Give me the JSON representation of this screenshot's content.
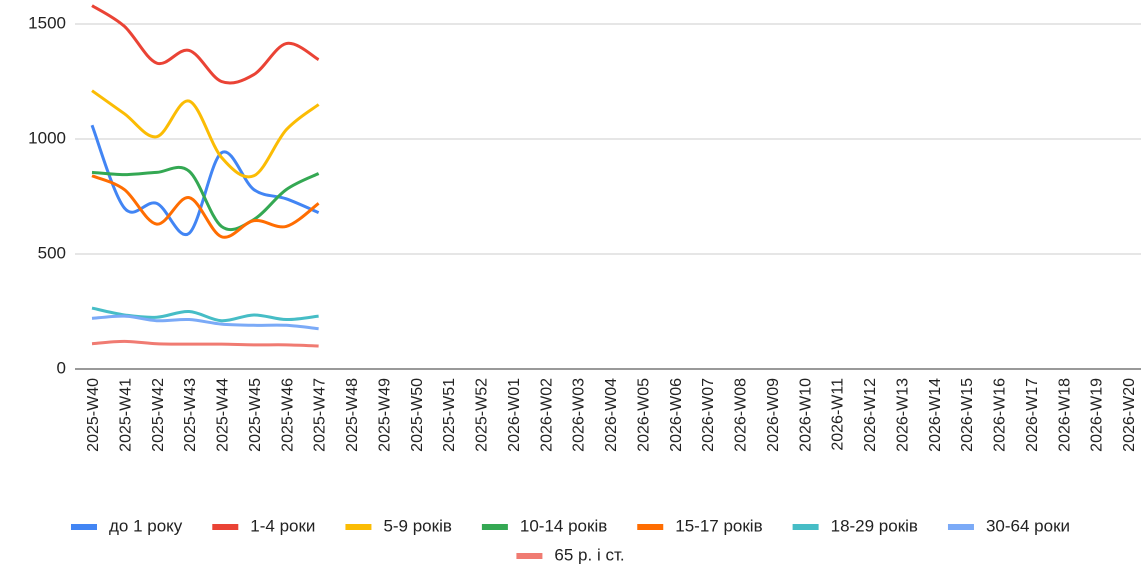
{
  "chart_data": {
    "type": "line",
    "categories": [
      "2025-W40",
      "2025-W41",
      "2025-W42",
      "2025-W43",
      "2025-W44",
      "2025-W45",
      "2025-W46",
      "2025-W47",
      "2025-W48",
      "2025-W49",
      "2025-W50",
      "2025-W51",
      "2025-W52",
      "2026-W01",
      "2026-W02",
      "2026-W03",
      "2026-W04",
      "2026-W05",
      "2026-W06",
      "2026-W07",
      "2026-W08",
      "2026-W09",
      "2026-W10",
      "2026-W11",
      "2026-W12",
      "2026-W13",
      "2026-W14",
      "2026-W15",
      "2026-W16",
      "2026-W17",
      "2026-W18",
      "2026-W19",
      "2026-W20"
    ],
    "series": [
      {
        "name": "до 1 року",
        "color": "#4285f4",
        "values": [
          1060,
          700,
          720,
          590,
          940,
          780,
          740,
          680,
          null,
          null,
          null,
          null,
          null,
          null,
          null,
          null,
          null,
          null,
          null,
          null,
          null,
          null,
          null,
          null,
          null,
          null,
          null,
          null,
          null,
          null,
          null,
          null,
          null
        ]
      },
      {
        "name": "1-4 роки",
        "color": "#ea4335",
        "values": [
          1580,
          1490,
          1330,
          1385,
          1250,
          1280,
          1415,
          1345,
          null,
          null,
          null,
          null,
          null,
          null,
          null,
          null,
          null,
          null,
          null,
          null,
          null,
          null,
          null,
          null,
          null,
          null,
          null,
          null,
          null,
          null,
          null,
          null,
          null
        ]
      },
      {
        "name": "5-9 років",
        "color": "#fbbc04",
        "values": [
          1210,
          1110,
          1010,
          1165,
          920,
          840,
          1040,
          1150,
          null,
          null,
          null,
          null,
          null,
          null,
          null,
          null,
          null,
          null,
          null,
          null,
          null,
          null,
          null,
          null,
          null,
          null,
          null,
          null,
          null,
          null,
          null,
          null,
          null
        ]
      },
      {
        "name": "10-14 років",
        "color": "#34a853",
        "values": [
          855,
          845,
          855,
          860,
          620,
          650,
          780,
          850,
          null,
          null,
          null,
          null,
          null,
          null,
          null,
          null,
          null,
          null,
          null,
          null,
          null,
          null,
          null,
          null,
          null,
          null,
          null,
          null,
          null,
          null,
          null,
          null,
          null
        ]
      },
      {
        "name": "15-17 років",
        "color": "#ff6d01",
        "values": [
          840,
          780,
          630,
          745,
          575,
          645,
          620,
          720,
          null,
          null,
          null,
          null,
          null,
          null,
          null,
          null,
          null,
          null,
          null,
          null,
          null,
          null,
          null,
          null,
          null,
          null,
          null,
          null,
          null,
          null,
          null,
          null,
          null
        ]
      },
      {
        "name": "18-29 років",
        "color": "#46bdc6",
        "values": [
          265,
          235,
          225,
          250,
          210,
          235,
          215,
          230,
          null,
          null,
          null,
          null,
          null,
          null,
          null,
          null,
          null,
          null,
          null,
          null,
          null,
          null,
          null,
          null,
          null,
          null,
          null,
          null,
          null,
          null,
          null,
          null,
          null
        ]
      },
      {
        "name": "30-64 роки",
        "color": "#7baaf7",
        "values": [
          220,
          230,
          210,
          215,
          195,
          190,
          190,
          175,
          null,
          null,
          null,
          null,
          null,
          null,
          null,
          null,
          null,
          null,
          null,
          null,
          null,
          null,
          null,
          null,
          null,
          null,
          null,
          null,
          null,
          null,
          null,
          null,
          null
        ]
      },
      {
        "name": "65 р. і ст.",
        "color": "#f07b72",
        "values": [
          110,
          120,
          110,
          108,
          108,
          105,
          105,
          100,
          null,
          null,
          null,
          null,
          null,
          null,
          null,
          null,
          null,
          null,
          null,
          null,
          null,
          null,
          null,
          null,
          null,
          null,
          null,
          null,
          null,
          null,
          null,
          null,
          null
        ]
      }
    ],
    "ylim": [
      0,
      1600
    ],
    "yticks": [
      0,
      500,
      1000,
      1500
    ],
    "grid": true,
    "legend": "bottom",
    "smooth": true
  }
}
